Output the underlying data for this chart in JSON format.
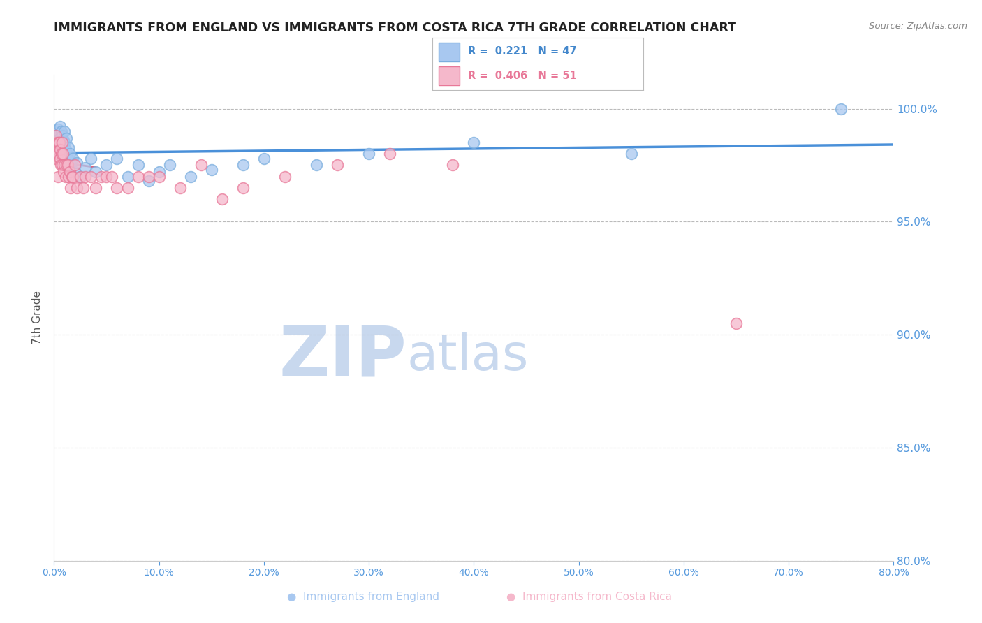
{
  "title": "IMMIGRANTS FROM ENGLAND VS IMMIGRANTS FROM COSTA RICA 7TH GRADE CORRELATION CHART",
  "source": "Source: ZipAtlas.com",
  "ylabel": "7th Grade",
  "xlim": [
    0.0,
    80.0
  ],
  "ylim": [
    80.0,
    101.5
  ],
  "yticks": [
    80.0,
    85.0,
    90.0,
    95.0,
    100.0
  ],
  "ytick_labels": [
    "80.0%",
    "85.0%",
    "90.0%",
    "95.0%",
    "100.0%"
  ],
  "xticks": [
    0,
    10,
    20,
    30,
    40,
    50,
    60,
    70,
    80
  ],
  "xtick_labels": [
    "0.0%",
    "10.0%",
    "20.0%",
    "30.0%",
    "40.0%",
    "50.0%",
    "60.0%",
    "70.0%",
    "80.0%"
  ],
  "england_color": "#a8c8f0",
  "england_edge_color": "#7aaede",
  "costa_rica_color": "#f5b8cb",
  "costa_rica_edge_color": "#e87898",
  "england_line_color": "#4a90d9",
  "costa_rica_line_color": "#e0607a",
  "england_R": 0.221,
  "england_N": 47,
  "costa_rica_R": 0.406,
  "costa_rica_N": 51,
  "england_x": [
    0.1,
    0.2,
    0.2,
    0.3,
    0.3,
    0.4,
    0.4,
    0.5,
    0.5,
    0.6,
    0.6,
    0.7,
    0.7,
    0.8,
    0.8,
    0.9,
    1.0,
    1.0,
    1.1,
    1.2,
    1.3,
    1.4,
    1.5,
    1.6,
    1.8,
    2.0,
    2.2,
    2.5,
    3.0,
    3.5,
    4.0,
    5.0,
    6.0,
    7.0,
    8.0,
    9.0,
    10.0,
    11.0,
    13.0,
    15.0,
    18.0,
    20.0,
    25.0,
    30.0,
    40.0,
    55.0,
    75.0
  ],
  "england_y": [
    98.2,
    99.0,
    98.5,
    98.8,
    98.3,
    99.1,
    98.6,
    98.9,
    98.4,
    99.2,
    98.7,
    98.5,
    99.0,
    98.8,
    98.3,
    98.6,
    98.5,
    99.0,
    98.2,
    98.7,
    97.8,
    98.3,
    98.0,
    97.5,
    97.8,
    97.2,
    97.6,
    97.0,
    97.4,
    97.8,
    97.2,
    97.5,
    97.8,
    97.0,
    97.5,
    96.8,
    97.2,
    97.5,
    97.0,
    97.3,
    97.5,
    97.8,
    97.5,
    98.0,
    98.5,
    98.0,
    100.0
  ],
  "costa_rica_x": [
    0.05,
    0.1,
    0.15,
    0.2,
    0.25,
    0.3,
    0.35,
    0.4,
    0.45,
    0.5,
    0.55,
    0.6,
    0.65,
    0.7,
    0.75,
    0.8,
    0.85,
    0.9,
    1.0,
    1.1,
    1.2,
    1.3,
    1.4,
    1.5,
    1.6,
    1.7,
    1.8,
    2.0,
    2.2,
    2.5,
    2.8,
    3.0,
    3.5,
    4.0,
    4.5,
    5.0,
    5.5,
    6.0,
    7.0,
    8.0,
    9.0,
    10.0,
    12.0,
    14.0,
    16.0,
    18.0,
    22.0,
    27.0,
    32.0,
    38.0,
    65.0
  ],
  "costa_rica_y": [
    98.5,
    98.0,
    97.8,
    98.8,
    98.2,
    98.5,
    97.0,
    98.0,
    98.5,
    98.5,
    97.8,
    98.2,
    97.5,
    98.0,
    98.5,
    97.5,
    98.0,
    97.2,
    97.5,
    97.0,
    97.5,
    97.5,
    97.0,
    97.2,
    96.5,
    97.0,
    97.0,
    97.5,
    96.5,
    97.0,
    96.5,
    97.0,
    97.0,
    96.5,
    97.0,
    97.0,
    97.0,
    96.5,
    96.5,
    97.0,
    97.0,
    97.0,
    96.5,
    97.5,
    96.0,
    96.5,
    97.0,
    97.5,
    98.0,
    97.5,
    90.5
  ],
  "background_color": "#ffffff",
  "grid_color": "#bbbbbb",
  "watermark_zip": "ZIP",
  "watermark_atlas": "atlas",
  "watermark_color_zip": "#c8d8ee",
  "watermark_color_atlas": "#c8d8ee",
  "title_color": "#222222",
  "axis_color": "#4488cc",
  "tick_color": "#5599dd",
  "source_color": "#888888"
}
